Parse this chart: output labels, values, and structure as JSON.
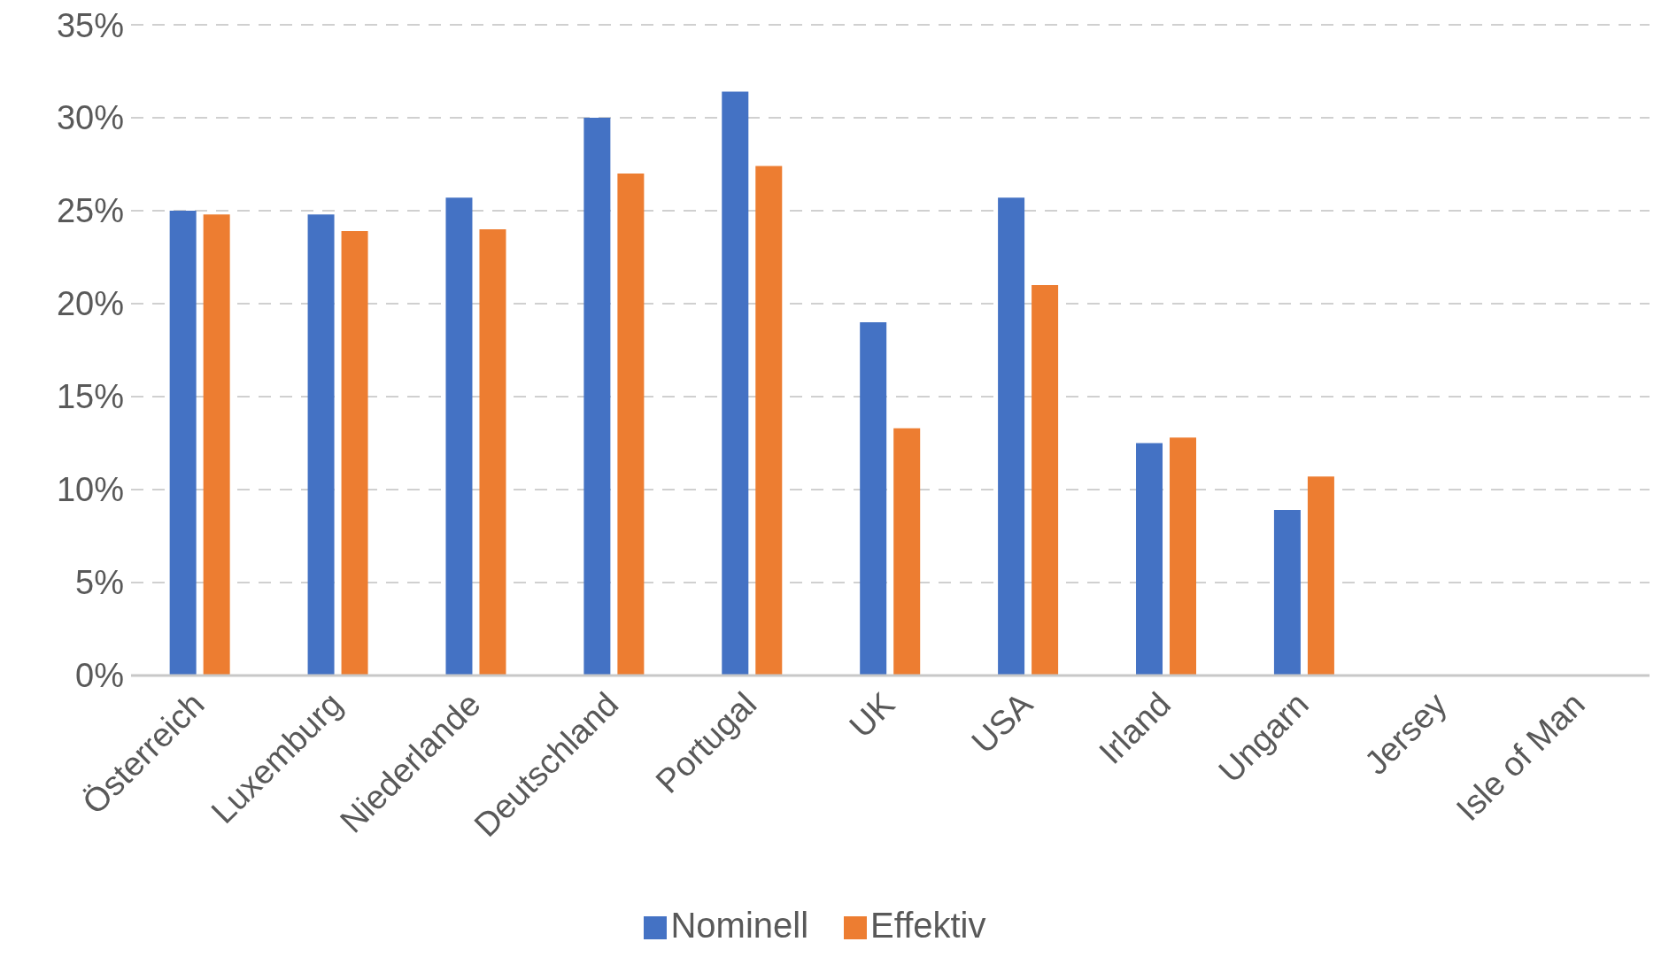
{
  "chart_data": {
    "type": "bar",
    "categories": [
      "Österreich",
      "Luxemburg",
      "Niederlande",
      "Deutschland",
      "Portugal",
      "UK",
      "USA",
      "Irland",
      "Ungarn",
      "Jersey",
      "Isle of Man"
    ],
    "series": [
      {
        "name": "Nominell",
        "color": "#4472c4",
        "values": [
          25,
          24.8,
          25.7,
          30,
          31.4,
          19,
          25.7,
          12.5,
          8.9,
          0,
          0
        ]
      },
      {
        "name": "Effektiv",
        "color": "#ed7d31",
        "values": [
          24.8,
          23.9,
          24,
          27,
          27.4,
          13.3,
          21,
          12.8,
          10.7,
          0,
          0
        ]
      }
    ],
    "ylim": [
      0,
      35
    ],
    "yticks": [
      {
        "value": 0,
        "label": "0%"
      },
      {
        "value": 5,
        "label": "5%"
      },
      {
        "value": 10,
        "label": "10%"
      },
      {
        "value": 15,
        "label": "15%"
      },
      {
        "value": 20,
        "label": "20%"
      },
      {
        "value": 25,
        "label": "25%"
      },
      {
        "value": 30,
        "label": "30%"
      },
      {
        "value": 35,
        "label": "35%"
      }
    ],
    "grid": "y",
    "legend": "bottom"
  }
}
